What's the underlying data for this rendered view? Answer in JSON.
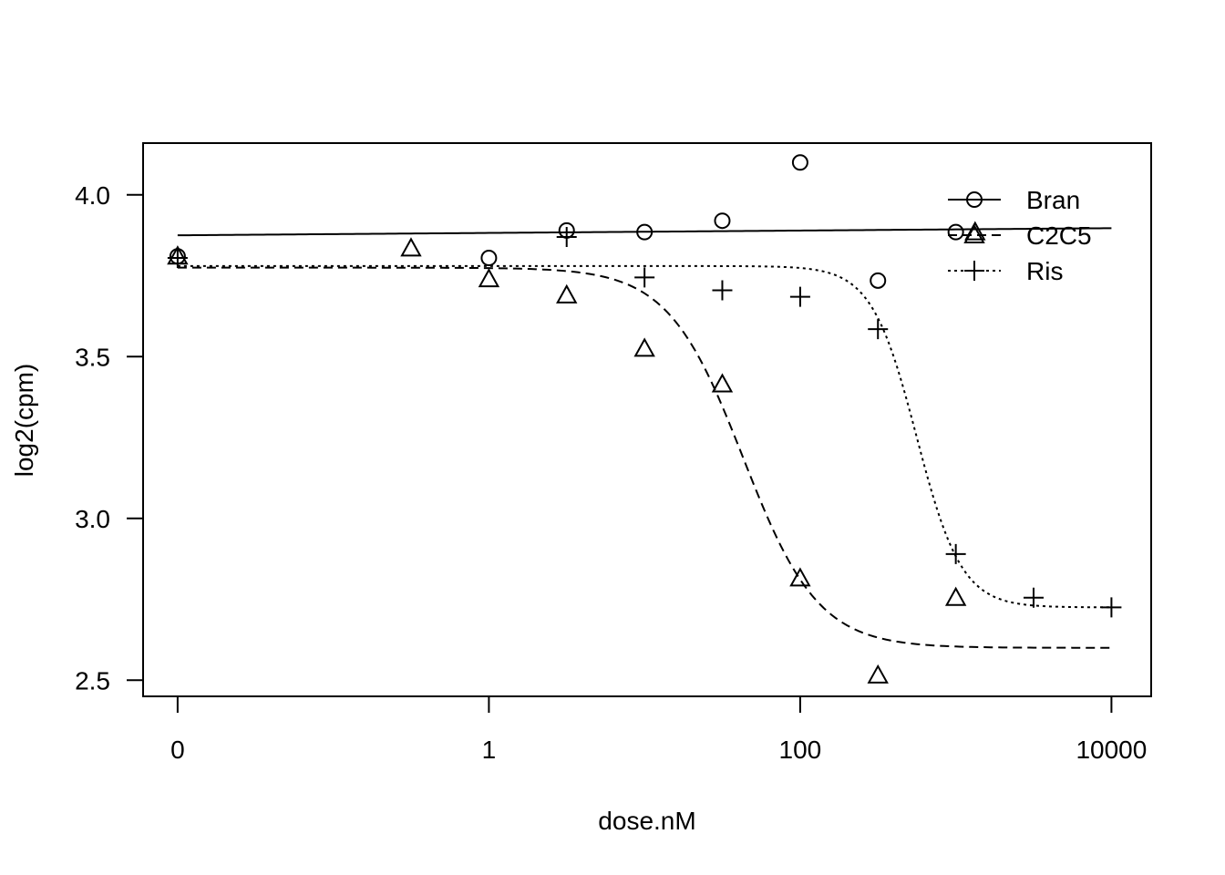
{
  "chart_data": {
    "type": "scatter",
    "xlabel": "dose.nM",
    "ylabel": "log2(cpm)",
    "x_scale": "log10",
    "x_ticks": [
      0.01,
      1,
      100,
      10000
    ],
    "x_tick_labels": [
      "0",
      "1",
      "100",
      "10000"
    ],
    "y_ticks": [
      2.5,
      3.0,
      3.5,
      4.0
    ],
    "y_tick_labels": [
      "2.5",
      "3.0",
      "3.5",
      "4.0"
    ],
    "xlim": [
      0.006,
      18000
    ],
    "ylim": [
      2.45,
      4.16
    ],
    "legend_position": "top-right",
    "series": [
      {
        "name": "Bran",
        "marker": "circle",
        "line_style": "solid",
        "points": [
          {
            "x": 0.01,
            "y": 3.81
          },
          {
            "x": 1,
            "y": 3.805
          },
          {
            "x": 3.16,
            "y": 3.89
          },
          {
            "x": 10,
            "y": 3.885
          },
          {
            "x": 31.6,
            "y": 3.92
          },
          {
            "x": 100,
            "y": 4.1
          },
          {
            "x": 316,
            "y": 3.735
          },
          {
            "x": 1000,
            "y": 3.885
          }
        ],
        "fit": {
          "model": "linear_in_log10_dose",
          "y_at_0.01": 3.875,
          "y_at_10000": 3.897
        }
      },
      {
        "name": "C2C5",
        "marker": "triangle",
        "line_style": "dashed",
        "points": [
          {
            "x": 0.01,
            "y": 3.81
          },
          {
            "x": 0.316,
            "y": 3.835
          },
          {
            "x": 1,
            "y": 3.74
          },
          {
            "x": 3.16,
            "y": 3.69
          },
          {
            "x": 10,
            "y": 3.525
          },
          {
            "x": 31.6,
            "y": 3.415
          },
          {
            "x": 100,
            "y": 2.815
          },
          {
            "x": 316,
            "y": 2.515
          },
          {
            "x": 1000,
            "y": 2.755
          },
          {
            "x": 1330,
            "y": 3.885
          }
        ],
        "fit": {
          "model": "logistic",
          "top": 3.775,
          "bottom": 2.6,
          "ec50": 43,
          "slope": 1.8
        }
      },
      {
        "name": "Ris",
        "marker": "plus",
        "line_style": "dotted",
        "points": [
          {
            "x": 0.01,
            "y": 3.805
          },
          {
            "x": 3.16,
            "y": 3.87
          },
          {
            "x": 10,
            "y": 3.745
          },
          {
            "x": 31.6,
            "y": 3.705
          },
          {
            "x": 100,
            "y": 3.685
          },
          {
            "x": 316,
            "y": 3.585
          },
          {
            "x": 1000,
            "y": 2.89
          },
          {
            "x": 3160,
            "y": 2.755
          },
          {
            "x": 10000,
            "y": 2.725
          }
        ],
        "fit": {
          "model": "logistic",
          "top": 3.78,
          "bottom": 2.725,
          "ec50": 560,
          "slope": 3.0
        }
      }
    ]
  }
}
